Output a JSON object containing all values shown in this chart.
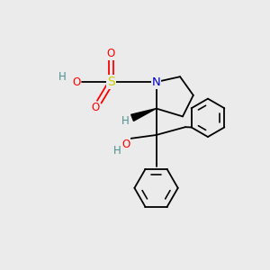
{
  "bg_color": "#ebebeb",
  "bond_color": "#000000",
  "bond_lw": 1.3,
  "atom_colors": {
    "N": "#0000cc",
    "O": "#ff0000",
    "S": "#cccc00",
    "H_teal": "#4a9090",
    "C": "#000000"
  },
  "font_size": 8.5,
  "fig_size": [
    3.0,
    3.0
  ],
  "dpi": 100,
  "xlim": [
    0,
    10
  ],
  "ylim": [
    0,
    10
  ]
}
